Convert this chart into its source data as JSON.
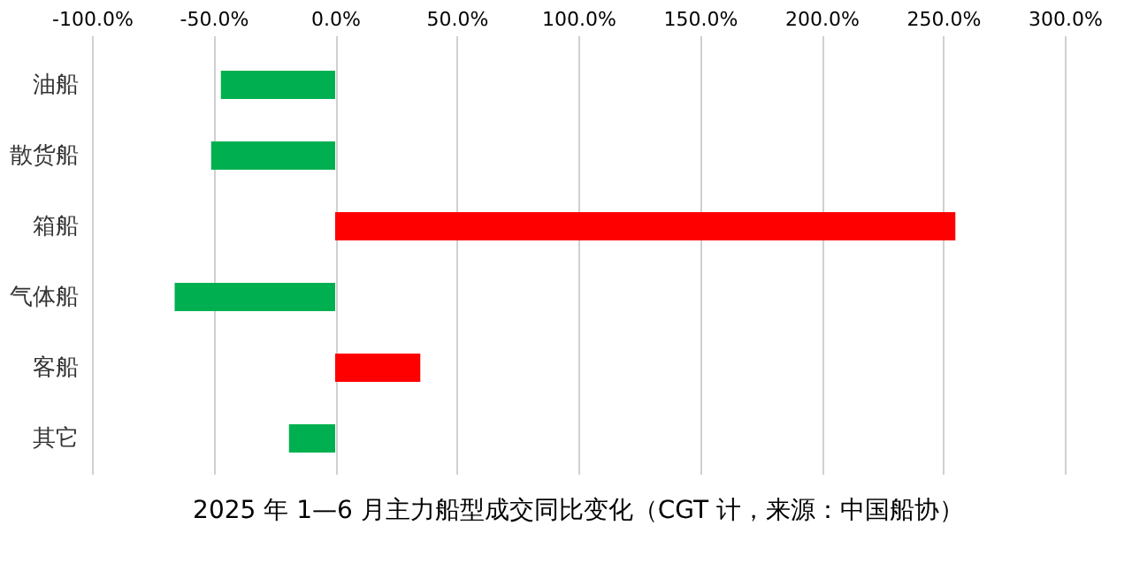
{
  "chart_data": {
    "type": "bar",
    "orientation": "horizontal",
    "title": "2025 年 1—6 月主力船型成交同比变化（CGT 计，来源：中国船协）",
    "categories": [
      "油船",
      "散货船",
      "箱船",
      "气体船",
      "客船",
      "其它"
    ],
    "values": [
      -47,
      -51,
      255,
      -66,
      35,
      -19
    ],
    "colors": [
      "#00b050",
      "#00b050",
      "#ff0000",
      "#00b050",
      "#ff0000",
      "#00b050"
    ],
    "xlim": [
      -100,
      300
    ],
    "xticks": [
      {
        "value": -100,
        "label": "-100.0%"
      },
      {
        "value": -50,
        "label": "-50.0%"
      },
      {
        "value": 0,
        "label": "0.0%"
      },
      {
        "value": 50,
        "label": "50.0%"
      },
      {
        "value": 100,
        "label": "100.0%"
      },
      {
        "value": 150,
        "label": "150.0%"
      },
      {
        "value": 200,
        "label": "200.0%"
      },
      {
        "value": 250,
        "label": "250.0%"
      },
      {
        "value": 300,
        "label": "300.0%"
      }
    ],
    "grid": "x"
  }
}
